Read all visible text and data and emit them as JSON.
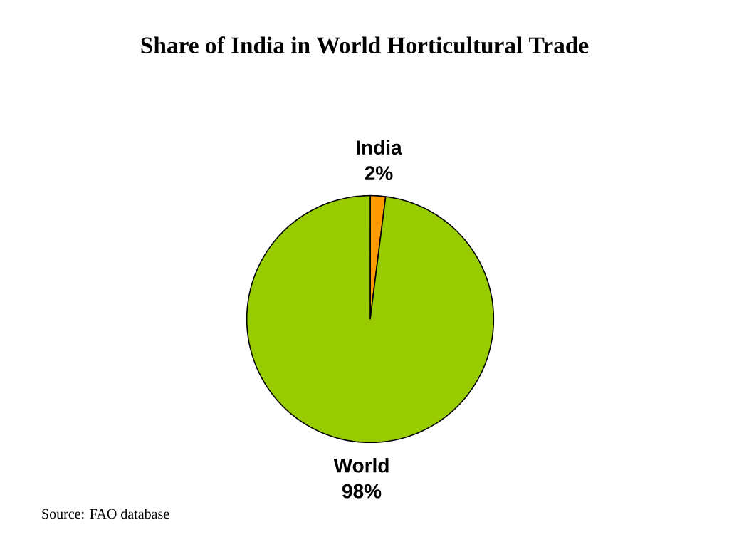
{
  "chart_data": {
    "type": "pie",
    "title": "Share of India in World Horticultural Trade",
    "categories": [
      "India",
      "World"
    ],
    "values": [
      2,
      98
    ],
    "colors": [
      "#ff9900",
      "#99cc00"
    ],
    "value_labels": [
      "2%",
      "98%"
    ],
    "annotations": [
      "Source: FAO database"
    ]
  }
}
